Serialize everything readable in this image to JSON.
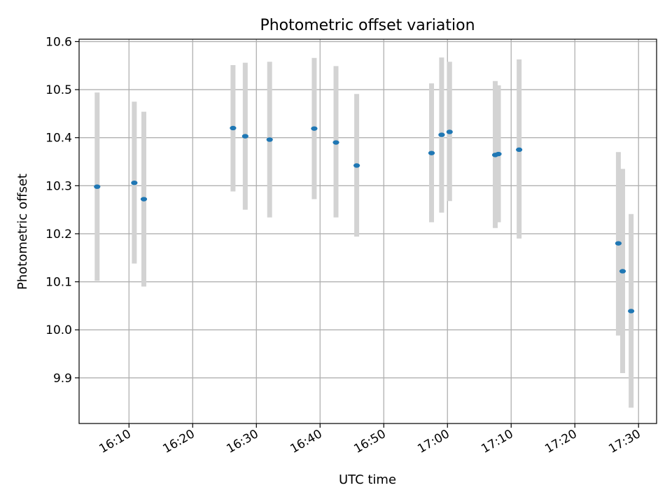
{
  "chart_data": {
    "type": "scatter",
    "title": "Photometric offset variation",
    "xlabel": "UTC time",
    "ylabel": "Photometric offset",
    "xlim": [
      "16:02:10",
      "17:32:50"
    ],
    "ylim": [
      9.805,
      10.605
    ],
    "x_ticks": [
      "16:10",
      "16:20",
      "16:30",
      "16:40",
      "16:50",
      "17:00",
      "17:10",
      "17:20",
      "17:30"
    ],
    "y_ticks": [
      "9.9",
      "10.0",
      "10.1",
      "10.2",
      "10.3",
      "10.4",
      "10.5",
      "10.6"
    ],
    "grid": true,
    "colors": {
      "point": "#1f77b4",
      "errorbar": "#d3d3d3",
      "grid": "#b0b0b0"
    },
    "series": [
      {
        "points": [
          {
            "x": "16:05:00",
            "y": 10.298,
            "y_low": 10.102,
            "y_high": 10.494
          },
          {
            "x": "16:10:50",
            "y": 10.306,
            "y_low": 10.138,
            "y_high": 10.475
          },
          {
            "x": "16:12:20",
            "y": 10.272,
            "y_low": 10.09,
            "y_high": 10.454
          },
          {
            "x": "16:26:20",
            "y": 10.42,
            "y_low": 10.288,
            "y_high": 10.551
          },
          {
            "x": "16:28:15",
            "y": 10.403,
            "y_low": 10.25,
            "y_high": 10.556
          },
          {
            "x": "16:32:05",
            "y": 10.396,
            "y_low": 10.234,
            "y_high": 10.558
          },
          {
            "x": "16:39:05",
            "y": 10.419,
            "y_low": 10.272,
            "y_high": 10.566
          },
          {
            "x": "16:42:30",
            "y": 10.39,
            "y_low": 10.234,
            "y_high": 10.549
          },
          {
            "x": "16:45:45",
            "y": 10.342,
            "y_low": 10.194,
            "y_high": 10.491
          },
          {
            "x": "16:57:30",
            "y": 10.368,
            "y_low": 10.224,
            "y_high": 10.513
          },
          {
            "x": "16:59:05",
            "y": 10.406,
            "y_low": 10.244,
            "y_high": 10.567
          },
          {
            "x": "17:00:20",
            "y": 10.412,
            "y_low": 10.268,
            "y_high": 10.558
          },
          {
            "x": "17:07:30",
            "y": 10.364,
            "y_low": 10.212,
            "y_high": 10.518
          },
          {
            "x": "17:08:00",
            "y": 10.366,
            "y_low": 10.224,
            "y_high": 10.509
          },
          {
            "x": "17:11:15",
            "y": 10.375,
            "y_low": 10.19,
            "y_high": 10.563
          },
          {
            "x": "17:26:50",
            "y": 10.18,
            "y_low": 9.988,
            "y_high": 10.37
          },
          {
            "x": "17:27:30",
            "y": 10.122,
            "y_low": 9.91,
            "y_high": 10.335
          },
          {
            "x": "17:28:50",
            "y": 10.039,
            "y_low": 9.838,
            "y_high": 10.241
          }
        ]
      }
    ]
  }
}
